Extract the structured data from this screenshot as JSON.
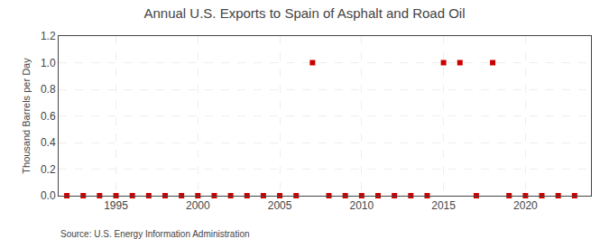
{
  "chart_data": {
    "type": "scatter",
    "title": "Annual U.S. Exports to Spain of Asphalt and Road Oil",
    "ylabel": "Thousand Barrels per Day",
    "annotations": [
      "Source: U.S. Energy Information Administration"
    ],
    "x": [
      1992,
      1993,
      1994,
      1995,
      1996,
      1997,
      1998,
      1999,
      2000,
      2001,
      2002,
      2003,
      2004,
      2005,
      2006,
      2007,
      2008,
      2009,
      2010,
      2011,
      2012,
      2013,
      2014,
      2015,
      2016,
      2017,
      2018,
      2019,
      2020,
      2021,
      2022,
      2023
    ],
    "values": [
      0,
      0,
      0,
      0,
      0,
      0,
      0,
      0,
      0,
      0,
      0,
      0,
      0,
      0,
      0,
      1,
      0,
      0,
      0,
      0,
      0,
      0,
      0,
      1,
      1,
      0,
      1,
      0,
      0,
      0,
      0,
      0
    ],
    "color": "#cc0000",
    "marker": "square",
    "xlim": [
      1991.5,
      2024
    ],
    "ylim": [
      0,
      1.2
    ],
    "xticks": [
      1995,
      2000,
      2005,
      2010,
      2015,
      2020
    ],
    "yticks": [
      {
        "value": 0,
        "label": "0.0"
      },
      0.2,
      0.4,
      0.6,
      0.8,
      {
        "value": 1,
        "label": "1.0"
      },
      1.2
    ],
    "grid": true
  }
}
